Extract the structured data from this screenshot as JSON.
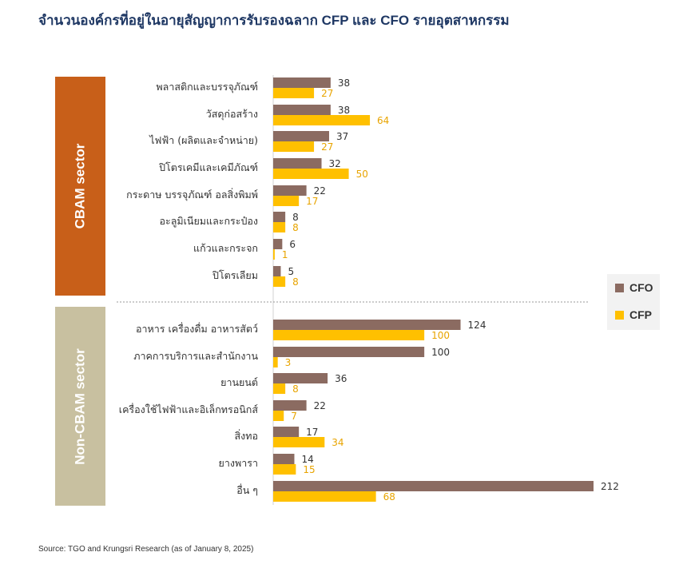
{
  "title": "จำนวนองค์กรที่อยู่ในอายุสัญญาการรับรองฉลาก CFP และ CFO รายอุตสาหกรรม",
  "sectors": [
    {
      "label": "CBAM sector",
      "color": "#c85f19",
      "rows": 8
    },
    {
      "label": "Non-CBAM sector",
      "color": "#c8c0a0",
      "rows": 7
    }
  ],
  "legend": [
    {
      "label": "CFO",
      "color": "#8b6b61"
    },
    {
      "label": "CFP",
      "color": "#ffc000"
    }
  ],
  "source": "Source: TGO and Krungsri Research (as of January 8, 2025)",
  "chart_data": {
    "type": "bar",
    "orientation": "horizontal",
    "title": "จำนวนองค์กรที่อยู่ในอายุสัญญาการรับรองฉลาก CFP และ CFO รายอุตสาหกรรม",
    "categories": [
      "พลาสติกและบรรจุภัณฑ์",
      "วัสดุก่อสร้าง",
      "ไฟฟ้า (ผลิตและจำหน่าย)",
      "ปิโตรเคมีและเคมีภัณฑ์",
      "กระดาษ บรรจุภัณฑ์ อลสิ่งพิมพ์",
      "อะลูมิเนียมและกระป๋อง",
      "แก้วและกระจก",
      "ปิโตรเลียม",
      "อาหาร เครื่องดื่ม อาหารสัตว์",
      "ภาคการบริการและสำนักงาน",
      "ยานยนต์",
      "เครื่องใช้ไฟฟ้าและอิเล็กทรอนิกส์",
      "สิ่งทอ",
      "ยางพารา",
      "อื่น ๆ"
    ],
    "series": [
      {
        "name": "CFO",
        "color": "#8b6b61",
        "values": [
          38,
          38,
          37,
          32,
          22,
          8,
          6,
          5,
          124,
          100,
          36,
          22,
          17,
          14,
          212
        ]
      },
      {
        "name": "CFP",
        "color": "#ffc000",
        "values": [
          27,
          64,
          27,
          50,
          17,
          8,
          1,
          8,
          100,
          3,
          8,
          7,
          34,
          15,
          68
        ]
      }
    ],
    "xlim": [
      0,
      212
    ],
    "grid": false,
    "legend_position": "right"
  }
}
